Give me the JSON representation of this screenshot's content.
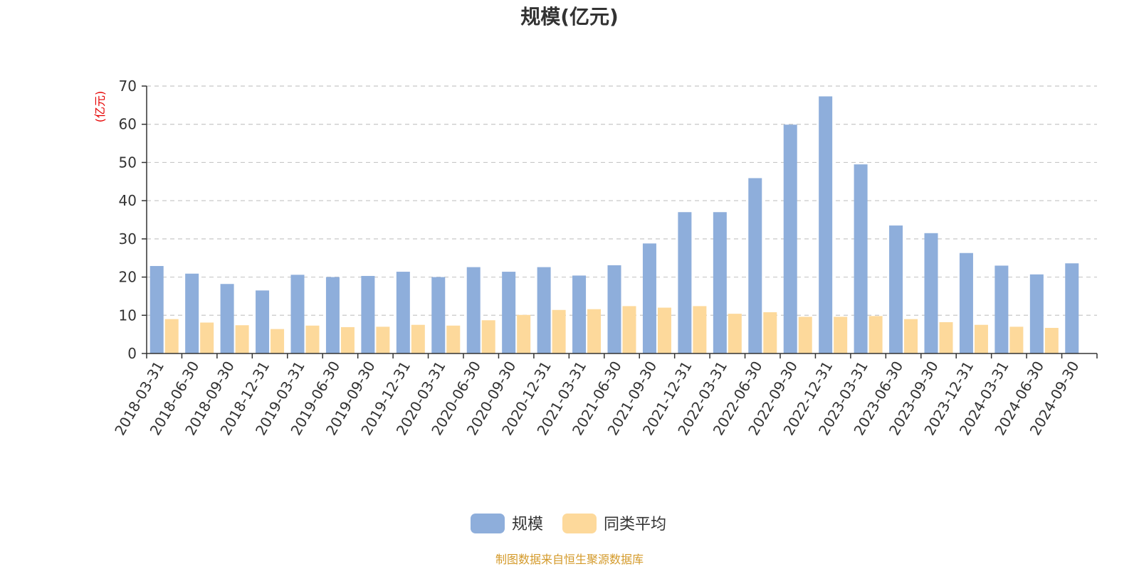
{
  "chart_data": {
    "type": "bar",
    "title": "规模(亿元)",
    "ylabel": "(亿元)",
    "xlabel": "",
    "ylim": [
      0,
      70
    ],
    "yticks": [
      0,
      10,
      20,
      30,
      40,
      50,
      60,
      70
    ],
    "grid": true,
    "legend_position": "bottom-center",
    "categories": [
      "2018-03-31",
      "2018-06-30",
      "2018-09-30",
      "2018-12-31",
      "2019-03-31",
      "2019-06-30",
      "2019-09-30",
      "2019-12-31",
      "2020-03-31",
      "2020-06-30",
      "2020-09-30",
      "2020-12-31",
      "2021-03-31",
      "2021-06-30",
      "2021-09-30",
      "2021-12-31",
      "2022-03-31",
      "2022-06-30",
      "2022-09-30",
      "2022-12-31",
      "2023-03-31",
      "2023-06-30",
      "2023-09-30",
      "2023-12-31",
      "2024-03-31",
      "2024-06-30",
      "2024-09-30"
    ],
    "series": [
      {
        "name": "规模",
        "color": "#8eaedb",
        "values": [
          22.9,
          20.9,
          18.2,
          16.5,
          20.6,
          20.0,
          20.3,
          21.4,
          20.0,
          22.6,
          21.4,
          22.6,
          20.4,
          23.1,
          28.8,
          37.0,
          37.0,
          45.9,
          59.9,
          67.3,
          49.5,
          33.5,
          31.5,
          26.3,
          23.0,
          20.7,
          23.6
        ]
      },
      {
        "name": "同类平均",
        "color": "#fdd99b",
        "values": [
          9.0,
          8.1,
          7.4,
          6.4,
          7.3,
          6.9,
          7.0,
          7.5,
          7.3,
          8.7,
          10.1,
          11.4,
          11.6,
          12.4,
          12.0,
          12.4,
          10.4,
          10.8,
          9.6,
          9.6,
          9.8,
          9.0,
          8.2,
          7.5,
          7.0,
          6.7,
          null
        ]
      }
    ]
  },
  "colors": {
    "axis": "#333333",
    "grid": "#c8c8c8",
    "ylabel": "#e60000",
    "source": "#d49a2a"
  },
  "source_note": "制图数据来自恒生聚源数据库"
}
